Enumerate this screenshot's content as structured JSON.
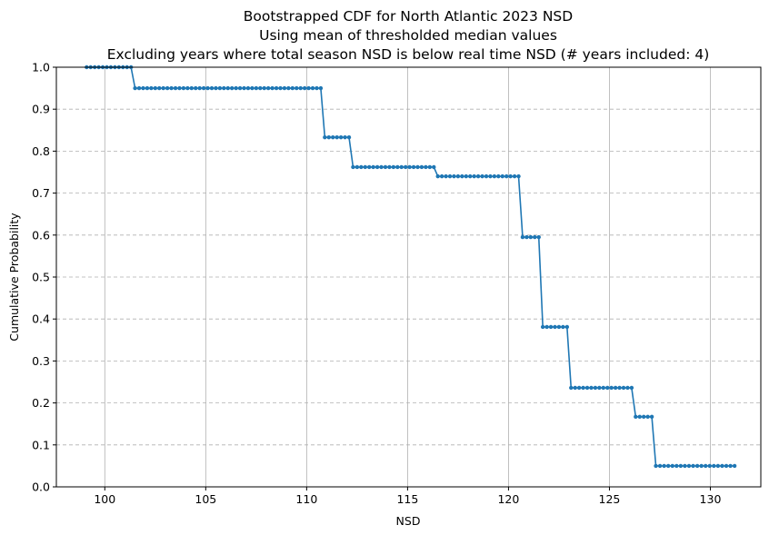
{
  "chart_data": {
    "type": "line",
    "title": [
      "Bootstrapped CDF for North Atlantic 2023 NSD",
      "Using mean of thresholded median values",
      "Excluding years where total season NSD is below real time NSD (# years included: 4)"
    ],
    "xlabel": "NSD",
    "ylabel": "Cumulative Probability",
    "xlim": [
      97.6,
      132.5
    ],
    "ylim": [
      0.0,
      1.0
    ],
    "xticks": [
      100,
      105,
      110,
      115,
      120,
      125,
      130
    ],
    "yticks": [
      0.0,
      0.1,
      0.2,
      0.3,
      0.4,
      0.5,
      0.6,
      0.7,
      0.8,
      0.9,
      1.0
    ],
    "x_grid": "solid",
    "y_grid": "dashed",
    "legend": "none",
    "marker": "circle",
    "step_x": 0.2,
    "series": [
      {
        "color": "#1f77b4",
        "segments": [
          {
            "x_start": 99.1,
            "x_end": 101.3,
            "y": 1.0
          },
          {
            "x_start": 101.5,
            "x_end": 110.7,
            "y": 0.95
          },
          {
            "x_start": 110.9,
            "x_end": 112.1,
            "y": 0.833
          },
          {
            "x_start": 112.3,
            "x_end": 116.3,
            "y": 0.762
          },
          {
            "x_start": 116.5,
            "x_end": 120.5,
            "y": 0.74
          },
          {
            "x_start": 120.7,
            "x_end": 121.5,
            "y": 0.595
          },
          {
            "x_start": 121.7,
            "x_end": 122.9,
            "y": 0.381
          },
          {
            "x_start": 123.1,
            "x_end": 126.1,
            "y": 0.236
          },
          {
            "x_start": 126.3,
            "x_end": 127.1,
            "y": 0.167
          },
          {
            "x_start": 127.3,
            "x_end": 131.2,
            "y": 0.05
          }
        ]
      }
    ]
  }
}
